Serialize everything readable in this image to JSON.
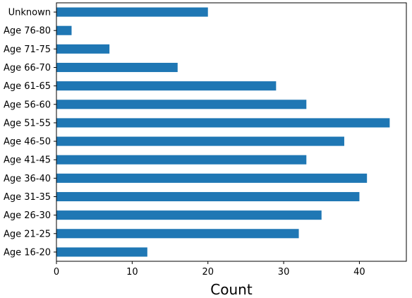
{
  "chart_data": {
    "type": "bar",
    "orientation": "horizontal",
    "categories": [
      "Age 16-20",
      "Age 21-25",
      "Age 26-30",
      "Age 31-35",
      "Age 36-40",
      "Age 41-45",
      "Age 46-50",
      "Age 51-55",
      "Age 56-60",
      "Age 61-65",
      "Age 66-70",
      "Age 71-75",
      "Age 76-80",
      "Unknown"
    ],
    "values": [
      12,
      32,
      35,
      40,
      41,
      33,
      38,
      44,
      33,
      29,
      16,
      7,
      2,
      20
    ],
    "xlabel": "Count",
    "ylabel": "",
    "xlim": [
      0,
      46.2
    ],
    "xticks": [
      0,
      10,
      20,
      30,
      40
    ],
    "grid": false,
    "bar_color": "#1f77b4"
  }
}
